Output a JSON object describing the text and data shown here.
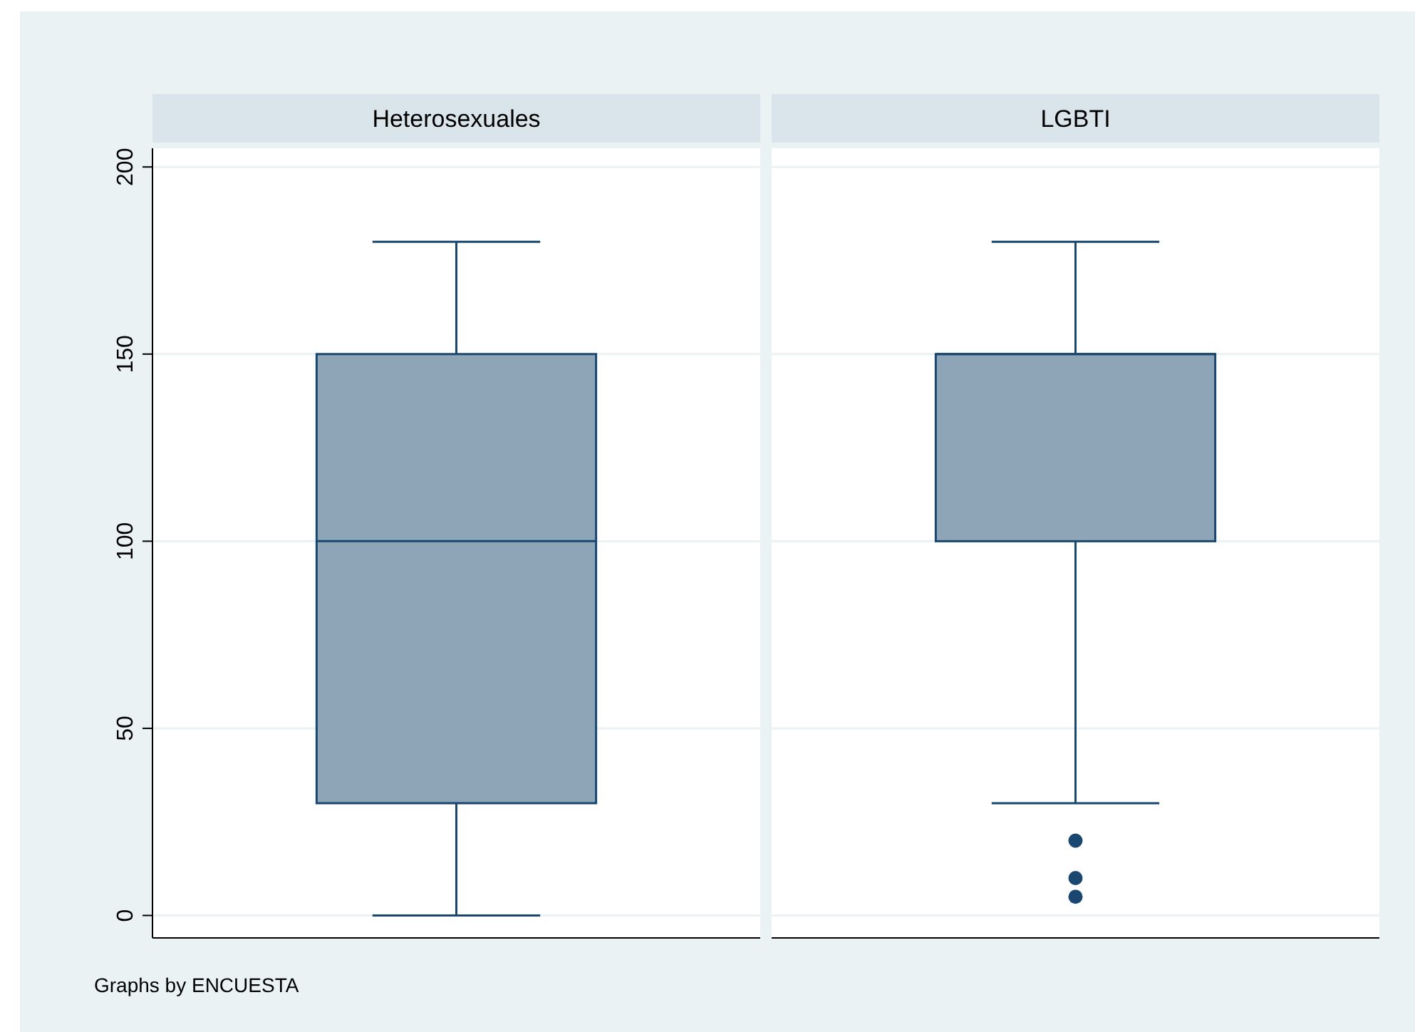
{
  "chart_data": {
    "type": "box",
    "categories": [
      "Heterosexuales",
      "LGBTI"
    ],
    "color": "#8ea5b8",
    "boxes": [
      {
        "low": 0,
        "q1": 30,
        "median": 100,
        "q3": 150,
        "high": 180
      },
      {
        "low": 30,
        "q1": 100,
        "median": 150,
        "q3": 150,
        "high": 180,
        "outliers": [
          20,
          10,
          5
        ]
      }
    ],
    "ylim": [
      -6,
      205
    ],
    "yticks": [
      0,
      50,
      100,
      150,
      200
    ],
    "grid": "y",
    "annotations": [
      "Graphs by ENCUESTA"
    ]
  }
}
